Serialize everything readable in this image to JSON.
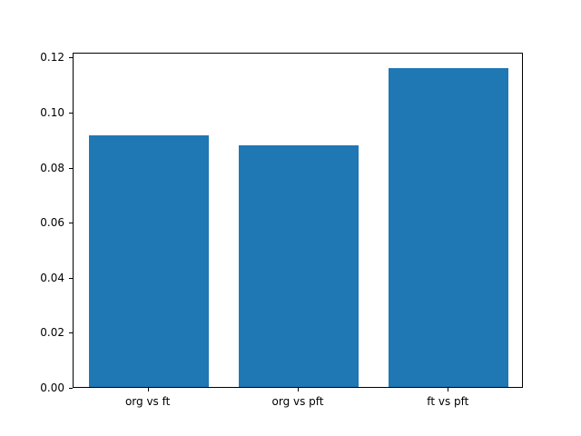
{
  "chart_data": {
    "type": "bar",
    "title": "",
    "xlabel": "",
    "ylabel": "",
    "categories": [
      "org vs ft",
      "org vs pft",
      "ft vs pft"
    ],
    "values": [
      0.0915,
      0.0878,
      0.116
    ],
    "yticks": [
      0.0,
      0.02,
      0.04,
      0.06,
      0.08,
      0.1,
      0.12
    ],
    "ytick_labels": [
      "0.00",
      "0.02",
      "0.04",
      "0.06",
      "0.08",
      "0.10",
      "0.12"
    ],
    "ylim": [
      0,
      0.1218
    ],
    "bar_color": "#1f77b4",
    "bar_width_fraction": 0.8,
    "grid": false,
    "legend": null,
    "background_color": "#ffffff",
    "axis_color": "#000000"
  }
}
